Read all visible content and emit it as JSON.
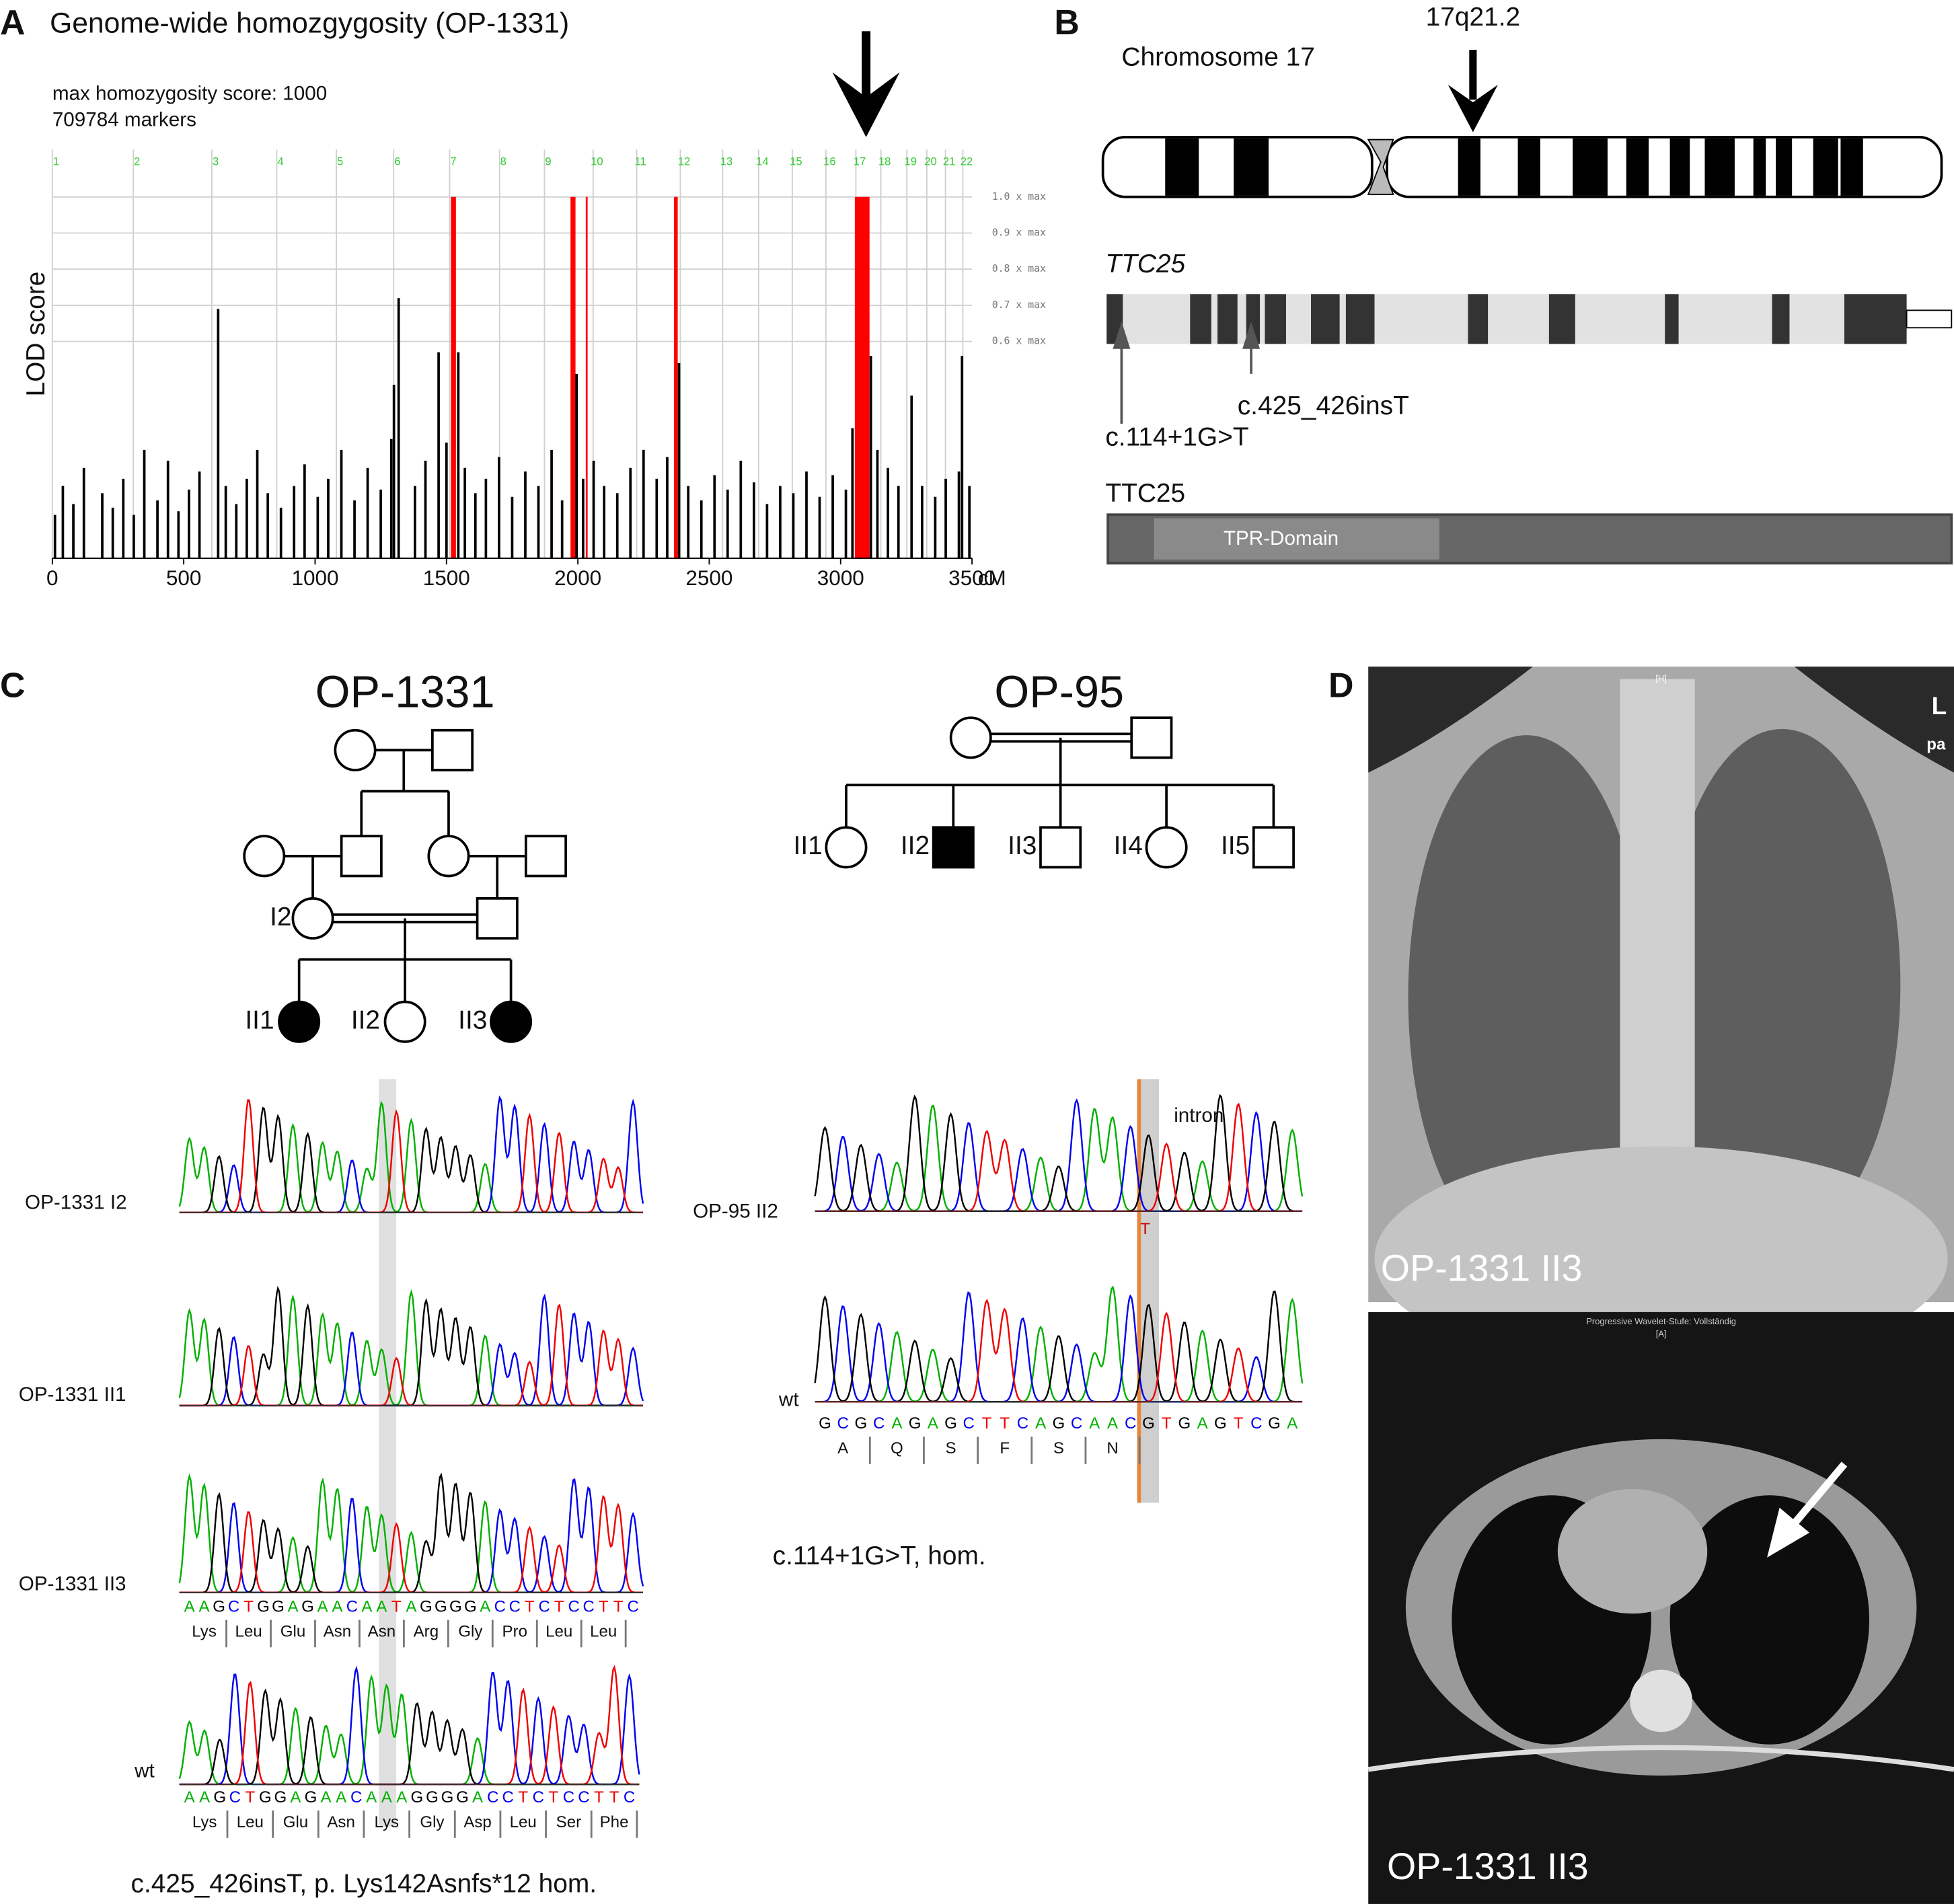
{
  "panel_labels": [
    "A",
    "B",
    "C",
    "D"
  ],
  "chart_data": {
    "type": "bar",
    "title": "Genome-wide homozgygosity (OP-1331)",
    "annotations": [
      "max homozygosity score: 1000",
      "709784 markers"
    ],
    "ylabel": "LOD score",
    "xlabel": "cM",
    "xlim": [
      0,
      3500
    ],
    "xticks": [
      0,
      500,
      1000,
      1500,
      2000,
      2500,
      3000,
      3500
    ],
    "ylim": [
      0,
      1
    ],
    "yticks": [
      {
        "value": 1.0,
        "label": "1.0 x max"
      },
      {
        "value": 0.9,
        "label": "0.9 x max"
      },
      {
        "value": 0.8,
        "label": "0.8 x max"
      },
      {
        "value": 0.7,
        "label": "0.7 x max"
      },
      {
        "value": 0.6,
        "label": "0.6 x max"
      }
    ],
    "grid": true,
    "chromosome_labels": [
      "1",
      "2",
      "3",
      "4",
      "5",
      "6",
      "7",
      "8",
      "9",
      "10",
      "11",
      "12",
      "13",
      "14",
      "15",
      "16",
      "17",
      "18",
      "19",
      "20",
      "21",
      "22"
    ],
    "chromosome_starts": [
      0,
      308,
      607,
      854,
      1081,
      1299,
      1512,
      1702,
      1873,
      2058,
      2224,
      2390,
      2551,
      2688,
      2816,
      2944,
      3058,
      3153,
      3252,
      3328,
      3399,
      3465
    ],
    "homozygous_regions": [
      [
        1517,
        1536
      ],
      [
        1972,
        1991
      ],
      [
        2030,
        2036
      ],
      [
        2366,
        2380
      ],
      [
        3054,
        3110
      ]
    ],
    "highlight_color": "#ff0000",
    "color": "#000000",
    "x": [
      10,
      40,
      80,
      120,
      190,
      230,
      270,
      310,
      350,
      400,
      440,
      480,
      520,
      560,
      631,
      660,
      700,
      740,
      780,
      820,
      870,
      920,
      960,
      1010,
      1050,
      1100,
      1150,
      1200,
      1250,
      1290,
      1300,
      1318,
      1380,
      1420,
      1470,
      1500,
      1545,
      1570,
      1610,
      1650,
      1700,
      1750,
      1800,
      1850,
      1900,
      1940,
      1995,
      2020,
      2060,
      2100,
      2150,
      2200,
      2250,
      2300,
      2340,
      2385,
      2420,
      2470,
      2520,
      2570,
      2620,
      2670,
      2720,
      2770,
      2820,
      2870,
      2920,
      2970,
      3020,
      3045,
      3115,
      3140,
      3180,
      3220,
      3270,
      3310,
      3360,
      3400,
      3450,
      3462,
      3490
    ],
    "values": [
      0.12,
      0.2,
      0.15,
      0.25,
      0.18,
      0.14,
      0.22,
      0.12,
      0.3,
      0.16,
      0.27,
      0.13,
      0.19,
      0.24,
      0.69,
      0.2,
      0.15,
      0.22,
      0.3,
      0.18,
      0.14,
      0.2,
      0.26,
      0.17,
      0.22,
      0.3,
      0.16,
      0.25,
      0.19,
      0.33,
      0.48,
      0.72,
      0.2,
      0.27,
      0.57,
      0.32,
      0.57,
      0.25,
      0.18,
      0.22,
      0.28,
      0.17,
      0.24,
      0.2,
      0.3,
      0.16,
      0.51,
      0.22,
      0.27,
      0.2,
      0.18,
      0.25,
      0.3,
      0.22,
      0.28,
      0.54,
      0.2,
      0.16,
      0.23,
      0.19,
      0.27,
      0.21,
      0.15,
      0.2,
      0.18,
      0.24,
      0.17,
      0.23,
      0.19,
      0.36,
      0.56,
      0.3,
      0.25,
      0.2,
      0.45,
      0.2,
      0.17,
      0.22,
      0.24,
      0.56,
      0.2
    ]
  },
  "panel_b": {
    "locus": "17q21.2",
    "chromosome": "Chromosome 17",
    "gene": "TTC25",
    "mutations": [
      "c.114+1G>T",
      "c.425_426insT"
    ],
    "protein": "TTC25",
    "domain": "TPR-Domain"
  },
  "panel_c": {
    "base_colors": {
      "A": "#00b000",
      "C": "#0000ee",
      "G": "#000000",
      "T": "#ee0000"
    },
    "families": [
      {
        "name": "OP-1331",
        "individuals": [
          "I2",
          "II1",
          "II2",
          "II3"
        ]
      },
      {
        "name": "OP-95",
        "individuals": [
          "II1",
          "II2",
          "II3",
          "II4",
          "II5"
        ]
      }
    ],
    "traces_left": {
      "labels": [
        "OP-1331 I2",
        "OP-1331 II1",
        "OP-1331 II3",
        "wt"
      ],
      "sequence_mutant": "AAGCTGGAGAACAATAGGGGACCTCTCCTTC",
      "amino_mutant": [
        "Lys",
        "Leu",
        "Glu",
        "Asn",
        "Asn",
        "Arg",
        "Gly",
        "Pro",
        "Leu",
        "Leu"
      ],
      "sequence_wt": "AAGCTGGAGAACAAAGGGGACCTCTCCTTC",
      "amino_wt": [
        "Lys",
        "Leu",
        "Glu",
        "Asn",
        "Lys",
        "Gly",
        "Asp",
        "Leu",
        "Ser",
        "Phe"
      ],
      "caption": "c.425_426insT, p. Lys142Asnfs*12 hom."
    },
    "traces_right": {
      "labels": [
        "OP-95 II2",
        "wt"
      ],
      "region": "intron",
      "variant_base": "T",
      "sequence_wt": "GCGCAGAGCTTCAGCAACGTGAGTCGA",
      "amino_wt": [
        "A",
        "Q",
        "S",
        "F",
        "S",
        "N"
      ],
      "caption": "c.114+1G>T, hom."
    }
  },
  "panel_d": {
    "xray_label": "OP-1331 II3",
    "side": "L",
    "view": "pa",
    "header": "[H]",
    "ct_header": "Progressive Wavelet-Stufe: Vollständig",
    "ct_view": "[A]",
    "ct_label": "OP-1331 II3"
  }
}
